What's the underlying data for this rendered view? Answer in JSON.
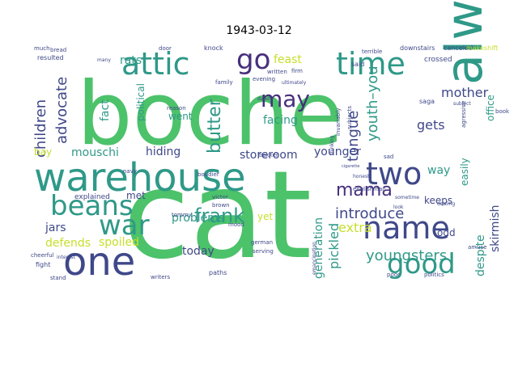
{
  "title": "1943-03-12",
  "palette": {
    "green": "#4cc26a",
    "teal": "#2f9988",
    "blue": "#34618d",
    "navy": "#3f4889",
    "purple": "#472f7c",
    "cyan": "#1e9e8a",
    "lime": "#c6df2a",
    "yellow": "#dfe318"
  },
  "words": [
    "boche",
    "cat",
    "warehouse",
    "always",
    "attic",
    "time",
    "go",
    "one",
    "war",
    "beans",
    "two",
    "name",
    "good",
    "may",
    "children",
    "advocate",
    "butter",
    "frank",
    "mama",
    "youth–you",
    "tongue",
    "introduce",
    "generation",
    "youngsters",
    "extra",
    "pickled",
    "mother",
    "gets",
    "problems",
    "skirmish",
    "despite",
    "office",
    "easily",
    "younger",
    "storeroom",
    "hiding",
    "mouschi",
    "jars",
    "defends",
    "spoiled",
    "today",
    "rats",
    "fact",
    "political",
    "feast",
    "went",
    "facing",
    "way",
    "keeps",
    "odd",
    "yet",
    "met",
    "explained",
    "bay",
    "crossed",
    "said",
    "saga",
    "canceled",
    "makeshift",
    "downstairs",
    "door",
    "knock",
    "bread",
    "resulted",
    "family",
    "written",
    "firm",
    "ultimately",
    "daddy",
    "bakker",
    "victor",
    "brown",
    "reason",
    "mood",
    "tommy",
    "navy",
    "fight",
    "stand",
    "cheerful",
    "paths",
    "writers",
    "german",
    "serving",
    "emancipation",
    "poor",
    "politics",
    "amuse",
    "dealing",
    "englishman",
    "honest",
    "cigarette",
    "thinking",
    "invariably",
    "subjects",
    "terrible",
    "interest",
    "sad",
    "subject",
    "agressive",
    "book",
    "boudier",
    "look",
    "sometime",
    "evening",
    "much",
    "many"
  ]
}
